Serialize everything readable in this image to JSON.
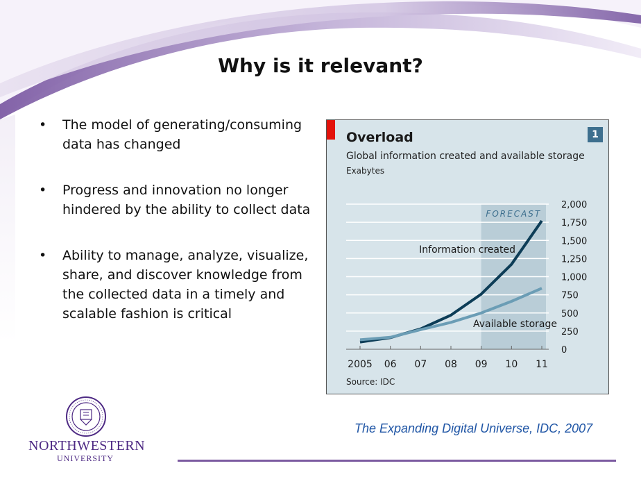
{
  "slide": {
    "title": "Why is it relevant?",
    "bullet_glyph": "•",
    "bullets": [
      "The model of generating/consuming data has changed",
      "Progress and innovation no longer hindered by the ability to collect data",
      "Ability to manage, analyze, visualize, share, and discover knowledge from the collected data in a timely and scalable fashion is critical"
    ],
    "caption": "The Expanding Digital Universe, IDC, 2007",
    "logo": {
      "name": "NORTHWESTERN",
      "sub": "UNIVERSITY",
      "seal_icon": "northwestern-seal-icon",
      "seal_color": "#4e2a84"
    },
    "colors": {
      "accent_purple": "#7b5aa0",
      "caption_blue": "#1f55a5",
      "chart_bg": "#d7e4ea",
      "forecast_bg": "#b9cdd7",
      "series_info": "#0d3d57",
      "series_storage": "#6b9db5",
      "econ_red": "#e3120b"
    }
  },
  "chart_data": {
    "type": "line",
    "title": "Overload",
    "subtitle": "Global information created and available storage",
    "unit": "Exabytes",
    "chart_number": "1",
    "forecast_label": "FORECAST",
    "forecast_range": [
      "09",
      "11"
    ],
    "source": "Source: IDC",
    "x": [
      "2005",
      "06",
      "07",
      "08",
      "09",
      "10",
      "11"
    ],
    "ylim": [
      0,
      2000
    ],
    "yticks": [
      "0",
      "250",
      "500",
      "750",
      "1,000",
      "1,250",
      "1,500",
      "1,750",
      "2,000"
    ],
    "ytick_values": [
      0,
      250,
      500,
      750,
      1000,
      1250,
      1500,
      1750,
      2000
    ],
    "y_axis_side": "right",
    "grid": true,
    "series": [
      {
        "name": "Information created",
        "values": [
          100,
          160,
          280,
          470,
          760,
          1170,
          1770
        ]
      },
      {
        "name": "Available storage",
        "values": [
          130,
          165,
          270,
          370,
          500,
          660,
          840
        ]
      }
    ]
  }
}
